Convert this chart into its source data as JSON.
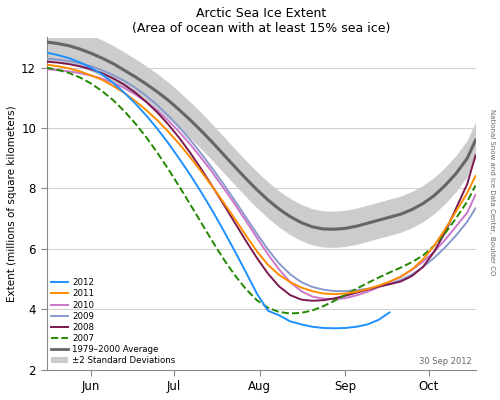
{
  "title": "Arctic Sea Ice Extent",
  "subtitle": "(Area of ocean with at least 15% sea ice)",
  "ylabel": "Extent (millions of square kilometers)",
  "watermark": "30 Sep 2012",
  "right_label": "National Snow and Ice Data Center, Boulder CO",
  "xlim_days": [
    136,
    291
  ],
  "ylim": [
    2,
    13
  ],
  "yticks": [
    2,
    4,
    6,
    8,
    10,
    12
  ],
  "month_ticks": {
    "Jun": 152,
    "Jul": 182,
    "Aug": 213,
    "Sep": 244,
    "Oct": 274
  },
  "avg_color": "#666666",
  "shade_color": "#cccccc",
  "years": {
    "2012": {
      "color": "#1e90ff",
      "lw": 1.4,
      "ls": "-"
    },
    "2011": {
      "color": "#ff8c00",
      "lw": 1.4,
      "ls": "-"
    },
    "2010": {
      "color": "#cc77cc",
      "lw": 1.4,
      "ls": "-"
    },
    "2009": {
      "color": "#8899cc",
      "lw": 1.4,
      "ls": "-"
    },
    "2008": {
      "color": "#7b1a50",
      "lw": 1.4,
      "ls": "-"
    },
    "2007": {
      "color": "#228800",
      "lw": 1.4,
      "ls": "--"
    }
  },
  "avg_data": {
    "days": [
      136,
      140,
      144,
      148,
      152,
      156,
      160,
      164,
      168,
      172,
      176,
      180,
      184,
      188,
      192,
      196,
      200,
      204,
      208,
      212,
      216,
      220,
      224,
      228,
      232,
      236,
      240,
      244,
      248,
      252,
      256,
      260,
      264,
      268,
      272,
      276,
      280,
      284,
      288,
      291
    ],
    "values": [
      12.85,
      12.8,
      12.73,
      12.62,
      12.48,
      12.32,
      12.14,
      11.92,
      11.7,
      11.46,
      11.2,
      10.92,
      10.6,
      10.26,
      9.9,
      9.52,
      9.12,
      8.72,
      8.33,
      7.96,
      7.62,
      7.32,
      7.07,
      6.87,
      6.73,
      6.66,
      6.65,
      6.68,
      6.75,
      6.85,
      6.95,
      7.05,
      7.15,
      7.3,
      7.5,
      7.76,
      8.1,
      8.5,
      9.0,
      9.6
    ]
  },
  "std_upper": {
    "days": [
      136,
      140,
      144,
      148,
      152,
      156,
      160,
      164,
      168,
      172,
      176,
      180,
      184,
      188,
      192,
      196,
      200,
      204,
      208,
      212,
      216,
      220,
      224,
      228,
      232,
      236,
      240,
      244,
      248,
      252,
      256,
      260,
      264,
      268,
      272,
      276,
      280,
      284,
      288,
      291
    ],
    "values": [
      13.45,
      13.4,
      13.33,
      13.22,
      13.08,
      12.92,
      12.74,
      12.52,
      12.3,
      12.06,
      11.8,
      11.52,
      11.2,
      10.86,
      10.5,
      10.12,
      9.72,
      9.32,
      8.93,
      8.56,
      8.22,
      7.92,
      7.67,
      7.47,
      7.33,
      7.26,
      7.25,
      7.28,
      7.35,
      7.45,
      7.55,
      7.65,
      7.75,
      7.9,
      8.1,
      8.36,
      8.7,
      9.1,
      9.6,
      10.2
    ]
  },
  "std_lower": {
    "days": [
      136,
      140,
      144,
      148,
      152,
      156,
      160,
      164,
      168,
      172,
      176,
      180,
      184,
      188,
      192,
      196,
      200,
      204,
      208,
      212,
      216,
      220,
      224,
      228,
      232,
      236,
      240,
      244,
      248,
      252,
      256,
      260,
      264,
      268,
      272,
      276,
      280,
      284,
      288,
      291
    ],
    "values": [
      12.25,
      12.2,
      12.13,
      12.02,
      11.88,
      11.72,
      11.54,
      11.32,
      11.1,
      10.86,
      10.6,
      10.32,
      10.0,
      9.66,
      9.3,
      8.92,
      8.52,
      8.12,
      7.73,
      7.36,
      7.02,
      6.72,
      6.47,
      6.27,
      6.13,
      6.06,
      6.05,
      6.08,
      6.15,
      6.25,
      6.35,
      6.45,
      6.55,
      6.7,
      6.9,
      7.16,
      7.5,
      7.9,
      8.4,
      9.0
    ]
  },
  "y2012": {
    "days": [
      136,
      140,
      144,
      148,
      152,
      156,
      160,
      164,
      168,
      172,
      176,
      180,
      184,
      188,
      192,
      196,
      200,
      204,
      208,
      212,
      216,
      220,
      224,
      228,
      232,
      236,
      240,
      244,
      248,
      252,
      256,
      260
    ],
    "values": [
      12.5,
      12.42,
      12.32,
      12.18,
      12.0,
      11.78,
      11.5,
      11.18,
      10.82,
      10.42,
      9.98,
      9.5,
      8.98,
      8.44,
      7.86,
      7.25,
      6.6,
      5.93,
      5.23,
      4.52,
      3.95,
      3.8,
      3.6,
      3.5,
      3.42,
      3.38,
      3.37,
      3.38,
      3.42,
      3.5,
      3.65,
      3.9
    ]
  },
  "y2011": {
    "days": [
      136,
      140,
      144,
      148,
      152,
      156,
      160,
      164,
      168,
      172,
      176,
      180,
      184,
      188,
      192,
      196,
      200,
      204,
      208,
      212,
      216,
      220,
      224,
      228,
      232,
      236,
      240,
      244,
      248,
      252,
      256,
      260,
      264,
      268,
      272,
      276,
      280,
      284,
      288,
      291
    ],
    "values": [
      12.1,
      12.05,
      11.98,
      11.88,
      11.75,
      11.6,
      11.4,
      11.17,
      10.9,
      10.6,
      10.26,
      9.88,
      9.47,
      9.02,
      8.55,
      8.05,
      7.53,
      7.0,
      6.45,
      5.92,
      5.47,
      5.14,
      4.9,
      4.72,
      4.6,
      4.52,
      4.5,
      4.52,
      4.58,
      4.67,
      4.78,
      4.92,
      5.08,
      5.32,
      5.65,
      6.1,
      6.65,
      7.25,
      7.85,
      8.42
    ]
  },
  "y2010": {
    "days": [
      136,
      140,
      144,
      148,
      152,
      156,
      160,
      164,
      168,
      172,
      176,
      180,
      184,
      188,
      192,
      196,
      200,
      204,
      208,
      212,
      216,
      220,
      224,
      228,
      232,
      236,
      240,
      244,
      248,
      252,
      256,
      260,
      264,
      268,
      272,
      276,
      280,
      284,
      288,
      291
    ],
    "values": [
      11.95,
      11.92,
      11.88,
      11.82,
      11.74,
      11.64,
      11.5,
      11.33,
      11.12,
      10.87,
      10.58,
      10.25,
      9.87,
      9.45,
      9.0,
      8.52,
      8.01,
      7.48,
      6.93,
      6.37,
      5.82,
      5.32,
      4.9,
      4.6,
      4.42,
      4.35,
      4.33,
      4.37,
      4.46,
      4.58,
      4.73,
      4.9,
      5.08,
      5.3,
      5.58,
      5.9,
      6.3,
      6.75,
      7.2,
      7.8
    ]
  },
  "y2009": {
    "days": [
      136,
      140,
      144,
      148,
      152,
      156,
      160,
      164,
      168,
      172,
      176,
      180,
      184,
      188,
      192,
      196,
      200,
      204,
      208,
      212,
      216,
      220,
      224,
      228,
      232,
      236,
      240,
      244,
      248,
      252,
      256,
      260,
      264,
      268,
      272,
      276,
      280,
      284,
      288,
      291
    ],
    "values": [
      12.3,
      12.27,
      12.22,
      12.15,
      12.05,
      11.92,
      11.76,
      11.57,
      11.34,
      11.07,
      10.76,
      10.41,
      10.02,
      9.6,
      9.14,
      8.65,
      8.14,
      7.6,
      7.05,
      6.5,
      5.98,
      5.52,
      5.16,
      4.9,
      4.74,
      4.65,
      4.6,
      4.6,
      4.63,
      4.68,
      4.75,
      4.84,
      4.97,
      5.15,
      5.4,
      5.7,
      6.05,
      6.45,
      6.9,
      7.35
    ]
  },
  "y2008": {
    "days": [
      136,
      140,
      144,
      148,
      152,
      156,
      160,
      164,
      168,
      172,
      176,
      180,
      184,
      188,
      192,
      196,
      200,
      204,
      208,
      212,
      216,
      220,
      224,
      228,
      232,
      236,
      240,
      244,
      248,
      252,
      256,
      260,
      264,
      268,
      272,
      276,
      280,
      284,
      288,
      291
    ],
    "values": [
      12.2,
      12.17,
      12.12,
      12.05,
      11.95,
      11.82,
      11.65,
      11.44,
      11.18,
      10.87,
      10.52,
      10.12,
      9.67,
      9.17,
      8.63,
      8.06,
      7.47,
      6.87,
      6.27,
      5.7,
      5.18,
      4.76,
      4.47,
      4.32,
      4.28,
      4.3,
      4.36,
      4.45,
      4.55,
      4.65,
      4.75,
      4.83,
      4.92,
      5.1,
      5.4,
      5.9,
      6.55,
      7.35,
      8.15,
      9.1
    ]
  },
  "y2007": {
    "days": [
      136,
      140,
      144,
      148,
      152,
      156,
      160,
      164,
      168,
      172,
      176,
      180,
      184,
      188,
      192,
      196,
      200,
      204,
      208,
      212,
      216,
      220,
      224,
      228,
      232,
      236,
      240,
      244,
      248,
      252,
      256,
      260,
      264,
      268,
      272,
      276,
      280,
      284,
      288,
      291
    ],
    "values": [
      12.0,
      11.93,
      11.83,
      11.68,
      11.48,
      11.23,
      10.93,
      10.57,
      10.16,
      9.7,
      9.19,
      8.64,
      8.06,
      7.46,
      6.85,
      6.24,
      5.66,
      5.13,
      4.67,
      4.3,
      4.05,
      3.91,
      3.86,
      3.88,
      3.96,
      4.1,
      4.28,
      4.48,
      4.68,
      4.87,
      5.05,
      5.22,
      5.38,
      5.56,
      5.78,
      6.1,
      6.52,
      7.02,
      7.57,
      8.1
    ]
  }
}
